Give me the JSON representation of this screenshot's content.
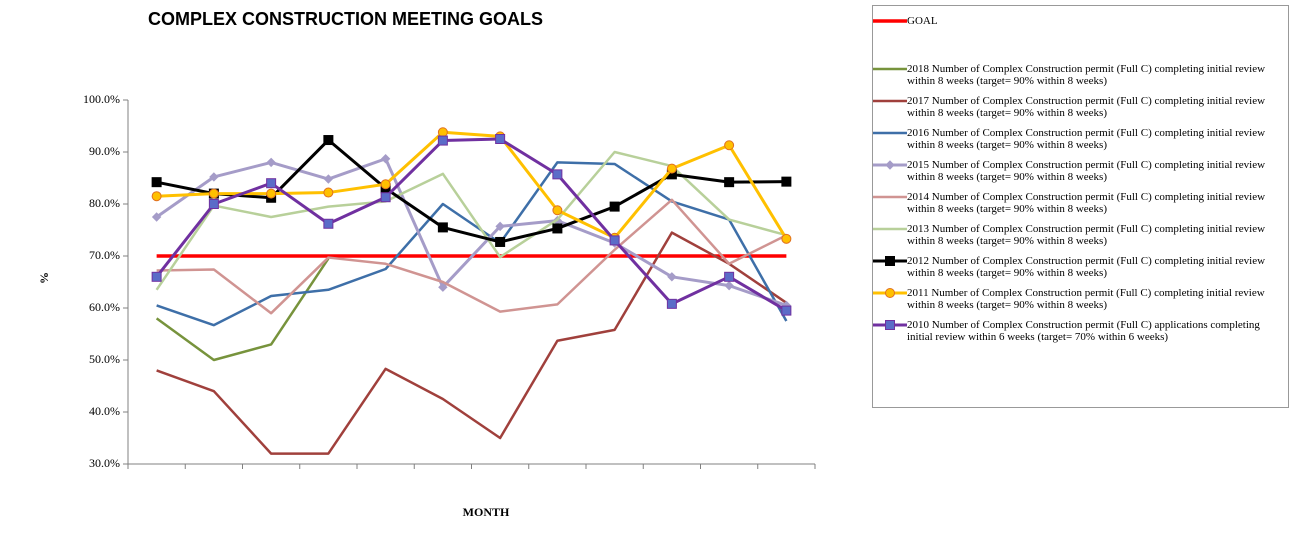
{
  "chart_data": {
    "type": "line",
    "title": "COMPLEX CONSTRUCTION MEETING GOALS",
    "x_label": "MONTH",
    "y_label": "%",
    "categories": [
      null,
      null,
      null,
      null,
      null,
      null,
      null,
      null,
      null,
      null,
      null,
      null
    ],
    "ylim": [
      30,
      100
    ],
    "yticks": [
      {
        "value": 30,
        "label": "30.0%"
      },
      {
        "value": 40,
        "label": "40.0%"
      },
      {
        "value": 50,
        "label": "50.0%"
      },
      {
        "value": 60,
        "label": "60.0%"
      },
      {
        "value": 70,
        "label": "70.0%"
      },
      {
        "value": 80,
        "label": "80.0%"
      },
      {
        "value": 90,
        "label": "90.0%"
      },
      {
        "value": 100,
        "label": "100.0%"
      }
    ],
    "legend": "right",
    "series": [
      {
        "name": "GOAL",
        "color": "#ff0000",
        "values": [
          70,
          70,
          70,
          70,
          70,
          70,
          70,
          70,
          70,
          70,
          70,
          70
        ]
      },
      {
        "name": "2018 Number of Complex Construction permit (Full C) completing initial review within 8 weeks (target= 90% within 8 weeks)",
        "color": "#77933c",
        "values": [
          58,
          50,
          53,
          69.5,
          null,
          null,
          null,
          null,
          null,
          null,
          null,
          null
        ]
      },
      {
        "name": "2017 Number of Complex Construction permit (Full C) completing initial review within 8 weeks (target= 90% within 8 weeks)",
        "color": "#a0403c",
        "values": [
          48,
          44,
          32,
          32,
          48.3,
          42.5,
          35,
          53.7,
          55.8,
          74.5,
          68.5,
          61
        ]
      },
      {
        "name": "2016 Number of Complex Construction permit (Full C) completing initial review within 8 weeks (target= 90% within 8 weeks)",
        "color": "#3e6fa8",
        "values": [
          60.5,
          56.7,
          62.3,
          63.5,
          67.5,
          80,
          72.5,
          88,
          87.7,
          80.5,
          77,
          57.5
        ]
      },
      {
        "name": "2015 Number of Complex Construction permit (Full C) completing initial review within 8 weeks (target= 90% within 8 weeks)",
        "color": "#a59cc8",
        "marker": "diamond",
        "values": [
          77.5,
          85.2,
          88,
          84.8,
          88.7,
          64,
          75.7,
          76.8,
          72.5,
          66,
          64.3,
          60.5
        ]
      },
      {
        "name": "2014 Number of Complex Construction permit (Full C) completing initial review within 8 weeks (target= 90% within 8 weeks)",
        "color": "#d09492",
        "values": [
          67.2,
          67.4,
          59,
          69.7,
          68.5,
          65,
          59.3,
          60.7,
          71.2,
          80.8,
          68.5,
          74
        ]
      },
      {
        "name": "2013 Number of Complex Construction permit (Full C) completing initial review within 8 weeks (target= 90% within 8 weeks)",
        "color": "#b8d09a",
        "values": [
          63.5,
          79.7,
          77.5,
          79.5,
          80.5,
          85.8,
          69.8,
          77,
          90,
          87.3,
          77,
          74
        ]
      },
      {
        "name": "2012 Number of Complex Construction permit (Full C) completing initial review within 8 weeks (target= 90% within 8 weeks)",
        "color": "#000000",
        "marker": "square",
        "values": [
          84.2,
          82,
          81.2,
          92.3,
          83,
          75.5,
          72.7,
          75.3,
          79.5,
          85.7,
          84.2,
          84.3
        ]
      },
      {
        "name": "2011 Number of Complex Construction permit (Full C) completing initial review within 8 weeks (target= 90% within 8 weeks)",
        "color": "#ffc000",
        "marker": "circle",
        "marker_fill": "#ffc000",
        "marker_stroke": "#e07020",
        "values": [
          81.5,
          82,
          82,
          82.2,
          83.8,
          93.8,
          93,
          78.8,
          73.5,
          86.8,
          91.3,
          73.3
        ]
      },
      {
        "name": "2010 Number of Complex Construction permit (Full C) applications completing initial review within 6 weeks (target= 70% within 6 weeks)",
        "color": "#7030a0",
        "marker": "square",
        "marker_fill": "#5b6cc8",
        "values": [
          66,
          80,
          84,
          76.2,
          81.3,
          92.2,
          92.5,
          85.7,
          73,
          60.8,
          66,
          59.5
        ]
      }
    ]
  }
}
